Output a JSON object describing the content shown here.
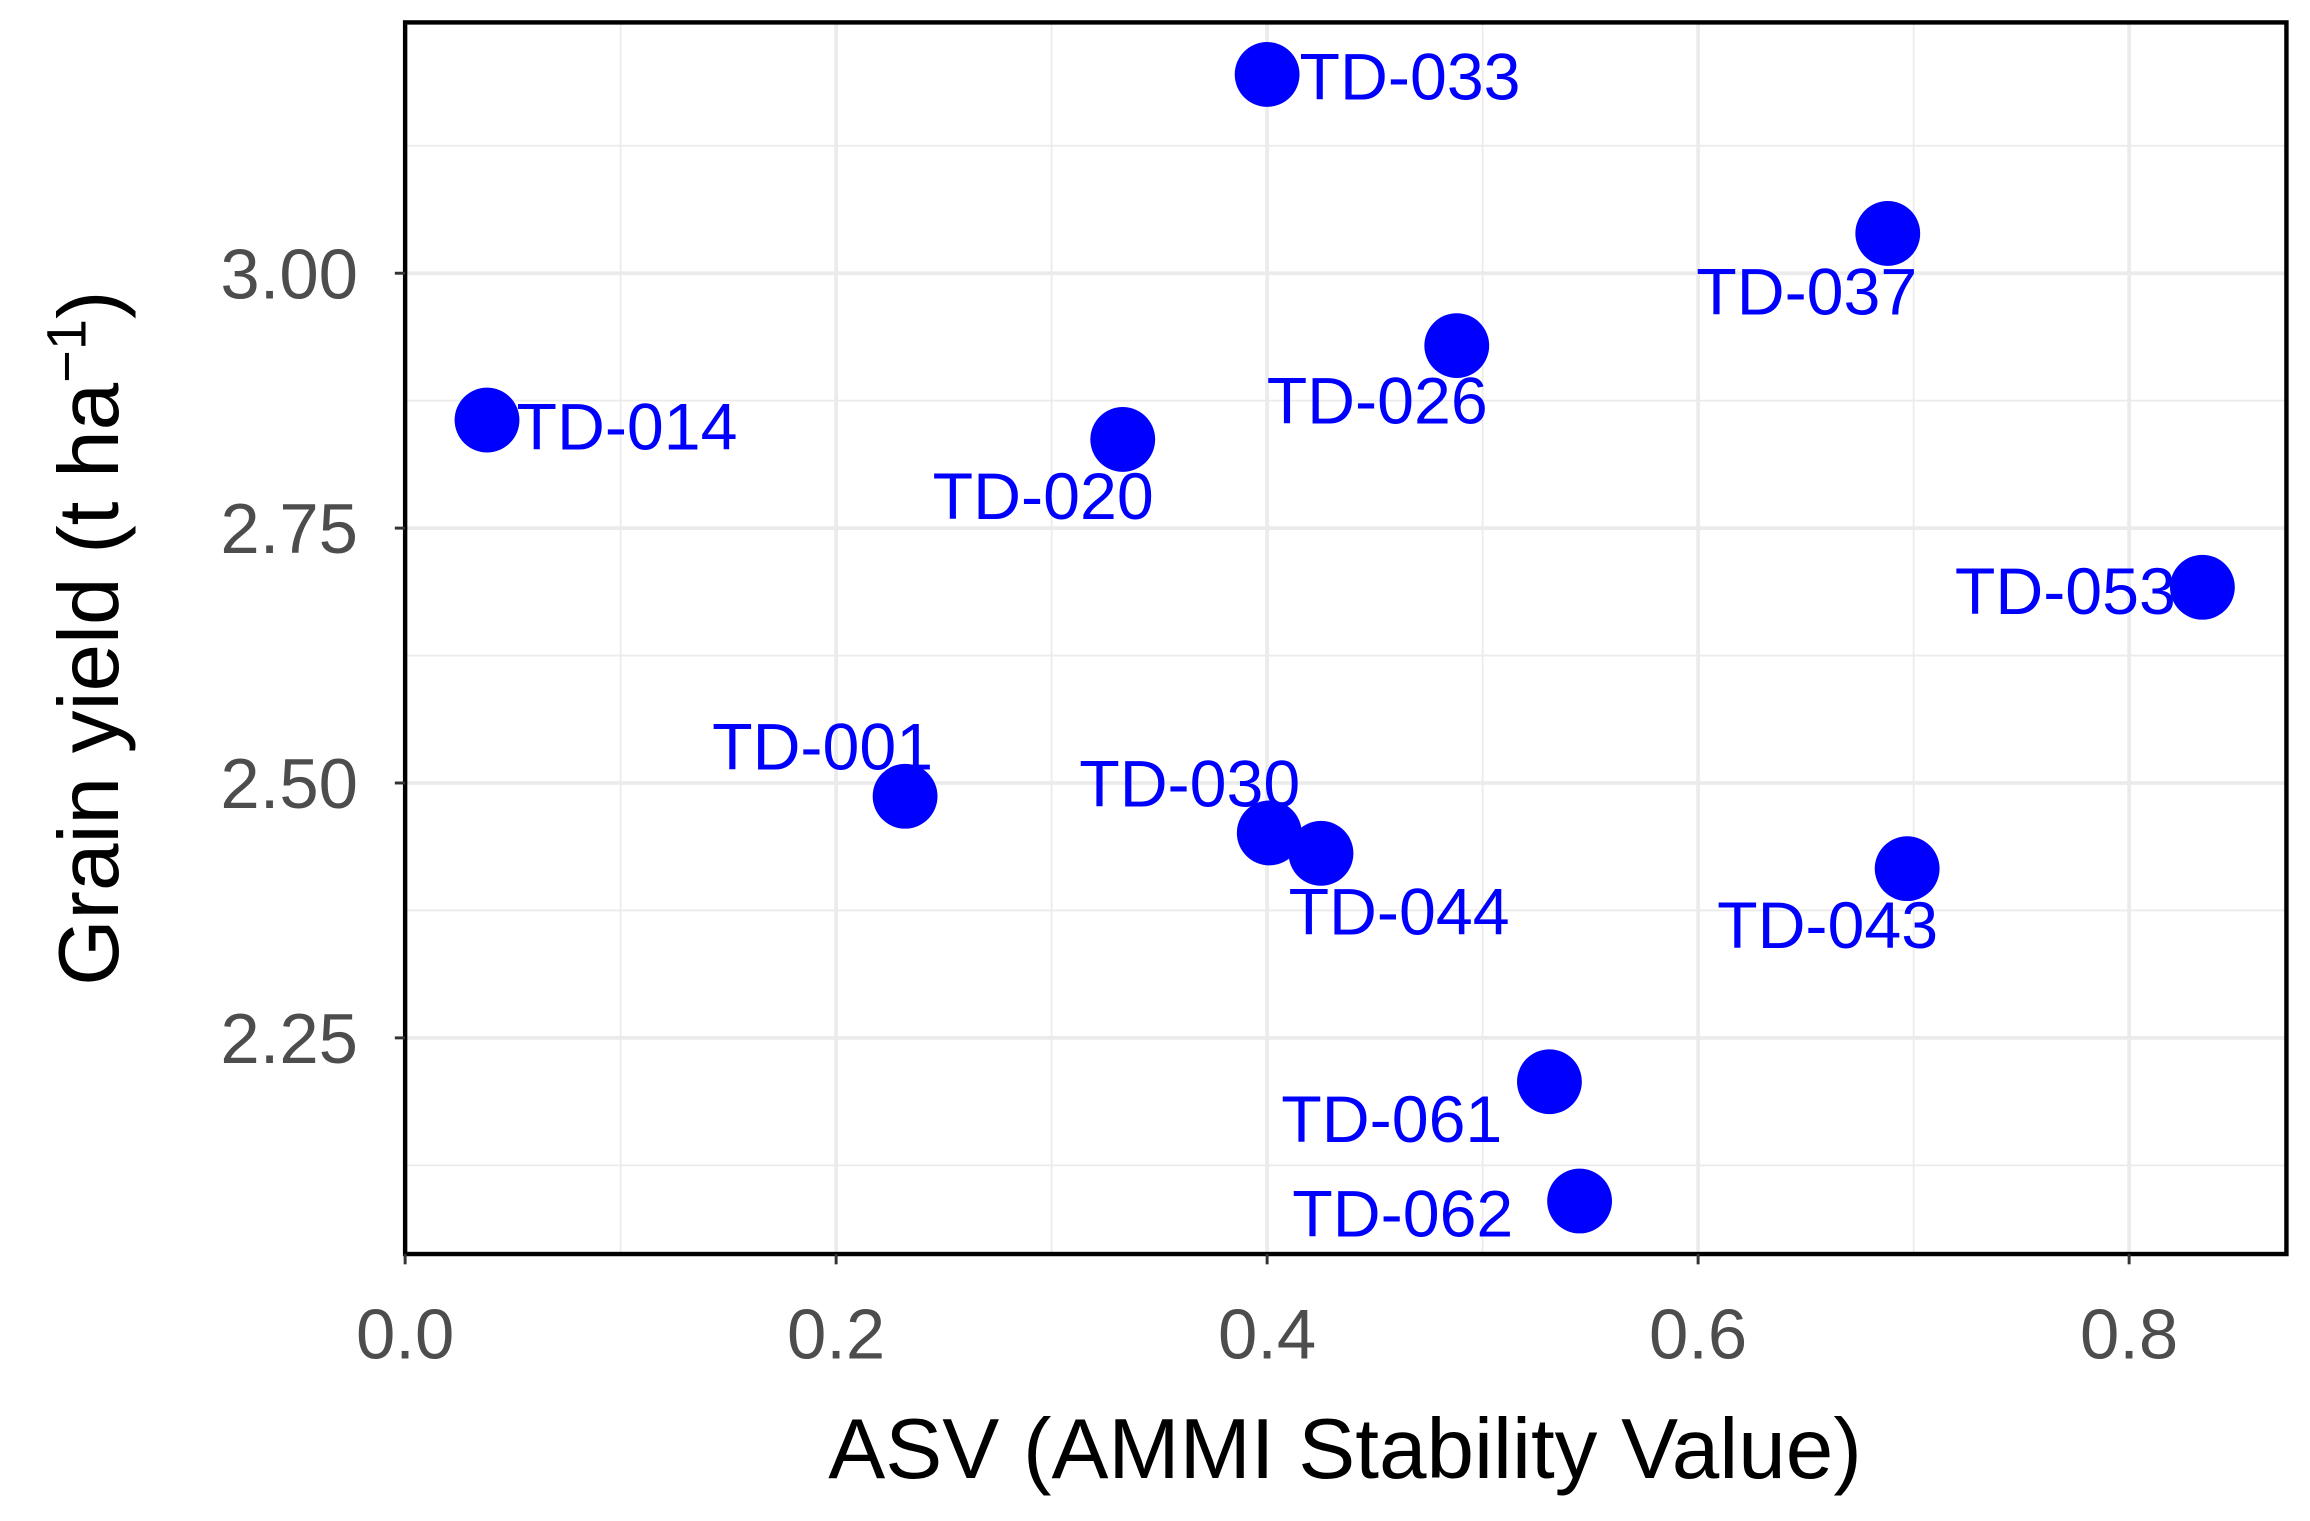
{
  "chart_data": {
    "type": "scatter",
    "title": "",
    "xlabel": "ASV (AMMI Stability Value)",
    "ylabel": "Grain yield (t ha",
    "ylabel_superscript": "−1",
    "ylabel_close": ")",
    "xlim": [
      0.0,
      0.873
    ],
    "ylim": [
      2.038,
      3.246
    ],
    "xticks": [
      0.0,
      0.2,
      0.4,
      0.6,
      0.8
    ],
    "xtick_labels": [
      "0.0",
      "0.2",
      "0.4",
      "0.6",
      "0.8"
    ],
    "yticks": [
      2.25,
      2.5,
      2.75,
      3.0
    ],
    "ytick_labels": [
      "2.25",
      "2.50",
      "2.75",
      "3.00"
    ],
    "grid": true,
    "point_color": "#0000ff",
    "points": [
      {
        "label": "TD-033",
        "x": 0.4,
        "y": 3.195
      },
      {
        "label": "TD-037",
        "x": 0.688,
        "y": 3.039
      },
      {
        "label": "TD-026",
        "x": 0.488,
        "y": 2.929
      },
      {
        "label": "TD-014",
        "x": 0.038,
        "y": 2.856
      },
      {
        "label": "TD-020",
        "x": 0.333,
        "y": 2.837
      },
      {
        "label": "TD-053",
        "x": 0.834,
        "y": 2.692
      },
      {
        "label": "TD-001",
        "x": 0.232,
        "y": 2.487
      },
      {
        "label": "TD-030",
        "x": 0.401,
        "y": 2.451
      },
      {
        "label": "TD-044",
        "x": 0.425,
        "y": 2.431
      },
      {
        "label": "TD-043",
        "x": 0.697,
        "y": 2.416
      },
      {
        "label": "TD-061",
        "x": 0.531,
        "y": 2.207
      },
      {
        "label": "TD-062",
        "x": 0.545,
        "y": 2.09
      }
    ]
  }
}
